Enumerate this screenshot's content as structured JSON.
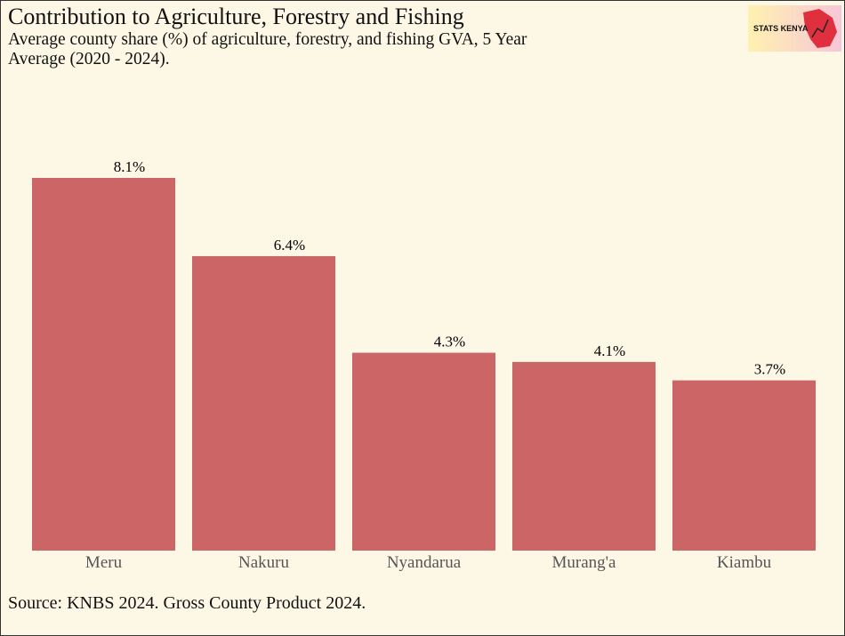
{
  "chart_data": {
    "type": "bar",
    "title": "Contribution to Agriculture, Forestry and Fishing",
    "subtitle": "Average county share (%) of agriculture, forestry, and fishing GVA, 5 Year Average (2020 - 2024).",
    "categories": [
      "Meru",
      "Nakuru",
      "Nyandarua",
      "Murang'a",
      "Kiambu"
    ],
    "values": [
      8.1,
      6.4,
      4.3,
      4.1,
      3.7
    ],
    "value_labels": [
      "8.1%",
      "6.4%",
      "4.3%",
      "4.1%",
      "3.7%"
    ],
    "color": "#cc6666",
    "source": "Source: KNBS 2024. Gross County Product 2024.",
    "logo": "STATS KENYA"
  }
}
